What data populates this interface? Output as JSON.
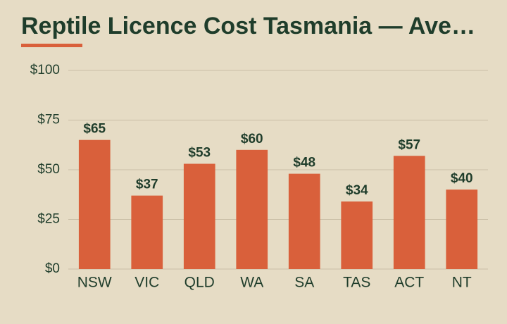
{
  "chart_data": {
    "type": "bar",
    "title": "Reptile Licence Cost Tasmania — Ave…",
    "categories": [
      "NSW",
      "VIC",
      "QLD",
      "WA",
      "SA",
      "TAS",
      "ACT",
      "NT"
    ],
    "values": [
      65,
      37,
      53,
      60,
      48,
      34,
      57,
      40
    ],
    "value_labels": [
      "$65",
      "$37",
      "$53",
      "$60",
      "$48",
      "$34",
      "$57",
      "$40"
    ],
    "color": "#d9603b",
    "ylim": [
      0,
      100
    ],
    "yticks": [
      {
        "value": 0,
        "label": "$0"
      },
      {
        "value": 25,
        "label": "$25"
      },
      {
        "value": 50,
        "label": "$50"
      },
      {
        "value": 75,
        "label": "$75"
      },
      {
        "value": 100,
        "label": "$100"
      }
    ],
    "grid": true
  }
}
